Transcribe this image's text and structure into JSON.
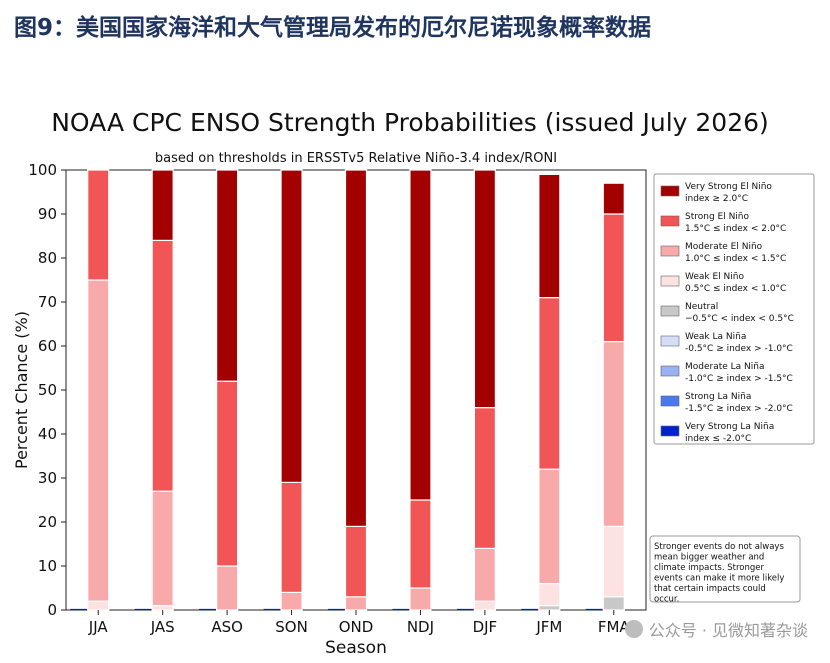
{
  "page": {
    "heading": "图9：美国国家海洋和大气管理局发布的厄尔尼诺现象概率数据",
    "watermark": "公众号 · 见微知著杂谈"
  },
  "chart_data": {
    "type": "bar",
    "stacked": true,
    "title": "NOAA CPC ENSO Strength Probabilities (issued July 2026)",
    "subtitle": "based on thresholds in ERSSTv5 Relative Niño-3.4 index/RONI",
    "xlabel": "Season",
    "ylabel": "Percent Chance (%)",
    "ylim": [
      0,
      100
    ],
    "yticks": [
      0,
      10,
      20,
      30,
      40,
      50,
      60,
      70,
      80,
      90,
      100
    ],
    "grid": false,
    "legend_position": "right",
    "categories": [
      "JJA",
      "JAS",
      "ASO",
      "SON",
      "OND",
      "NDJ",
      "DJF",
      "JFM",
      "FMA"
    ],
    "series": [
      {
        "name": "Very Strong La Niña",
        "range": "index ≤ -2.0°C",
        "color": "#0022cc",
        "values": [
          0,
          0,
          0,
          0,
          0,
          0,
          0,
          0,
          0
        ]
      },
      {
        "name": "Strong La Niña",
        "range": "-1.5°C ≥ index > -2.0°C",
        "color": "#4a78f0",
        "values": [
          0,
          0,
          0,
          0,
          0,
          0,
          0,
          0,
          0
        ]
      },
      {
        "name": "Moderate La Niña",
        "range": "-1.0°C ≥ index > -1.5°C",
        "color": "#9ab1f3",
        "values": [
          0,
          0,
          0,
          0,
          0,
          0,
          0,
          0,
          0
        ]
      },
      {
        "name": "Weak La Niña",
        "range": "-0.5°C ≥ index > -1.0°C",
        "color": "#d4def9",
        "values": [
          0,
          0,
          0,
          0,
          0,
          0,
          0,
          0,
          0
        ]
      },
      {
        "name": "Neutral",
        "range": "−0.5°C < index < 0.5°C",
        "color": "#c8c8c8",
        "values": [
          0,
          0,
          0,
          0,
          0,
          0,
          0,
          1,
          3
        ]
      },
      {
        "name": "Weak El Niño",
        "range": "0.5°C ≤ index < 1.0°C",
        "color": "#fde2e2",
        "values": [
          2,
          1,
          0,
          0,
          0,
          0,
          2,
          5,
          16
        ]
      },
      {
        "name": "Moderate El Niño",
        "range": "1.0°C ≤ index < 1.5°C",
        "color": "#f8aaaa",
        "values": [
          73,
          26,
          10,
          4,
          3,
          5,
          12,
          26,
          42
        ]
      },
      {
        "name": "Strong El Niño",
        "range": "1.5°C ≤ index < 2.0°C",
        "color": "#f25555",
        "values": [
          25,
          57,
          42,
          25,
          16,
          20,
          32,
          39,
          29
        ]
      },
      {
        "name": "Very Strong El Niño",
        "range": "index ≥ 2.0°C",
        "color": "#a30000",
        "values": [
          0,
          16,
          48,
          71,
          81,
          75,
          54,
          28,
          7
        ]
      }
    ],
    "annotation": "Stronger events do not always mean bigger weather and climate impacts. Stronger events can make it more likely that certain impacts could occur."
  }
}
